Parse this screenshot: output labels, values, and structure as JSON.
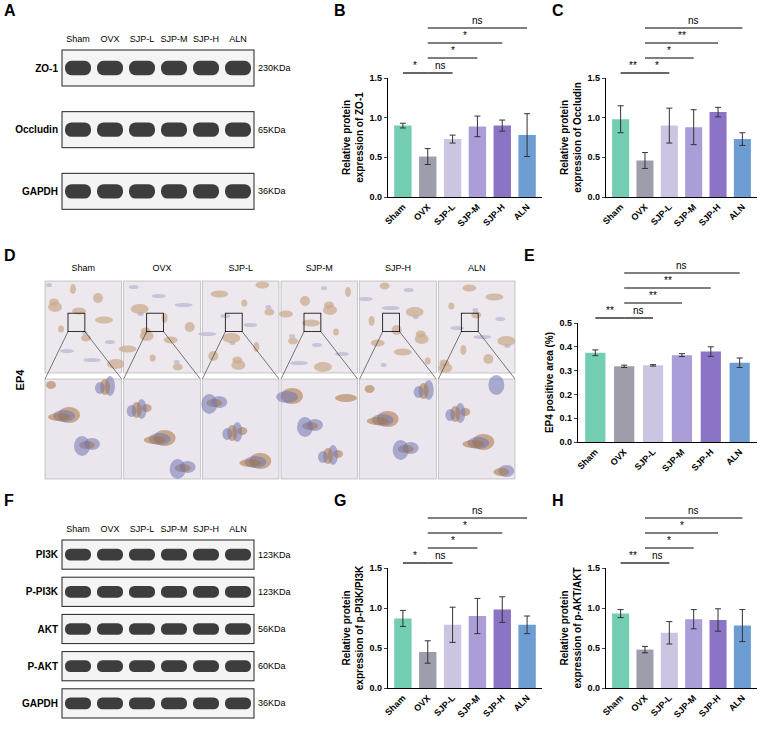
{
  "chart_data": [
    {
      "panel": "B",
      "type": "bar",
      "grid": false,
      "categories": [
        "Sham",
        "OVX",
        "SJP-L",
        "SJP-M",
        "SJP-H",
        "ALN"
      ],
      "values": [
        0.9,
        0.51,
        0.73,
        0.89,
        0.9,
        0.78
      ],
      "errors": [
        0.03,
        0.1,
        0.05,
        0.13,
        0.07,
        0.27
      ],
      "colors": [
        "#72cdb3",
        "#9d9dab",
        "#cbc5e2",
        "#ab9dd8",
        "#8b73c5",
        "#6d9dd3"
      ],
      "y_label": "Relative protein expression of ZO-1",
      "ylim": [
        0,
        1.5
      ],
      "yticks": [
        {
          "value": 0,
          "label": "0.0"
        },
        {
          "value": 0.5,
          "label": "0.5"
        },
        {
          "value": 1,
          "label": "1.0"
        },
        {
          "value": 1.5,
          "label": "1.5"
        }
      ],
      "comparisons": [
        {
          "from": "Sham",
          "to": "OVX",
          "label": "*"
        },
        {
          "from": "OVX",
          "to": "SJP-L",
          "label": "ns"
        },
        {
          "from": "OVX",
          "to": "SJP-M",
          "label": "*"
        },
        {
          "from": "OVX",
          "to": "SJP-H",
          "label": "*"
        },
        {
          "from": "OVX",
          "to": "ALN",
          "label": "ns"
        }
      ]
    },
    {
      "panel": "C",
      "type": "bar",
      "grid": false,
      "categories": [
        "Sham",
        "OVX",
        "SJP-L",
        "SJP-M",
        "SJP-H",
        "ALN"
      ],
      "values": [
        0.98,
        0.46,
        0.9,
        0.88,
        1.07,
        0.73
      ],
      "errors": [
        0.17,
        0.1,
        0.22,
        0.22,
        0.06,
        0.08
      ],
      "colors": [
        "#72cdb3",
        "#9d9dab",
        "#cbc5e2",
        "#ab9dd8",
        "#8b73c5",
        "#6d9dd3"
      ],
      "y_label": "Relative protein expression of Occludin",
      "ylim": [
        0,
        1.5
      ],
      "yticks": [
        {
          "value": 0,
          "label": "0.0"
        },
        {
          "value": 0.5,
          "label": "0.5"
        },
        {
          "value": 1,
          "label": "1.0"
        },
        {
          "value": 1.5,
          "label": "1.5"
        }
      ],
      "comparisons": [
        {
          "from": "Sham",
          "to": "OVX",
          "label": "**"
        },
        {
          "from": "OVX",
          "to": "SJP-L",
          "label": "*"
        },
        {
          "from": "OVX",
          "to": "SJP-M",
          "label": "*"
        },
        {
          "from": "OVX",
          "to": "SJP-H",
          "label": "**"
        },
        {
          "from": "OVX",
          "to": "ALN",
          "label": "ns"
        }
      ]
    },
    {
      "panel": "E",
      "type": "bar",
      "grid": false,
      "categories": [
        "Sham",
        "OVX",
        "SJP-L",
        "SJP-M",
        "SJP-H",
        "ALN"
      ],
      "values": [
        0.375,
        0.318,
        0.322,
        0.365,
        0.38,
        0.333
      ],
      "errors": [
        0.012,
        0.005,
        0.003,
        0.006,
        0.02,
        0.02
      ],
      "colors": [
        "#72cdb3",
        "#9d9dab",
        "#cbc5e2",
        "#ab9dd8",
        "#8b73c5",
        "#6d9dd3"
      ],
      "y_label": "EP4 positive area (%)",
      "ylim": [
        0,
        0.5
      ],
      "yticks": [
        {
          "value": 0,
          "label": "0.0"
        },
        {
          "value": 0.1,
          "label": "0.1"
        },
        {
          "value": 0.2,
          "label": "0.2"
        },
        {
          "value": 0.3,
          "label": "0.3"
        },
        {
          "value": 0.4,
          "label": "0.4"
        },
        {
          "value": 0.5,
          "label": "0.5"
        }
      ],
      "comparisons": [
        {
          "from": "Sham",
          "to": "OVX",
          "label": "**"
        },
        {
          "from": "OVX",
          "to": "SJP-L",
          "label": "ns"
        },
        {
          "from": "OVX",
          "to": "SJP-M",
          "label": "**"
        },
        {
          "from": "OVX",
          "to": "SJP-H",
          "label": "**"
        },
        {
          "from": "OVX",
          "to": "ALN",
          "label": "ns"
        }
      ]
    },
    {
      "panel": "G",
      "type": "bar",
      "grid": false,
      "categories": [
        "Sham",
        "OVX",
        "SJP-L",
        "SJP-M",
        "SJP-H",
        "ALN"
      ],
      "values": [
        0.87,
        0.45,
        0.79,
        0.9,
        0.98,
        0.79
      ],
      "errors": [
        0.1,
        0.14,
        0.22,
        0.22,
        0.16,
        0.11
      ],
      "colors": [
        "#72cdb3",
        "#9d9dab",
        "#cbc5e2",
        "#ab9dd8",
        "#8b73c5",
        "#6d9dd3"
      ],
      "y_label": "Relative protein expression of p-PI3K/PI3K",
      "ylim": [
        0,
        1.5
      ],
      "yticks": [
        {
          "value": 0,
          "label": "0.0"
        },
        {
          "value": 0.5,
          "label": "0.5"
        },
        {
          "value": 1,
          "label": "1.0"
        },
        {
          "value": 1.5,
          "label": "1.5"
        }
      ],
      "comparisons": [
        {
          "from": "Sham",
          "to": "OVX",
          "label": "*"
        },
        {
          "from": "OVX",
          "to": "SJP-L",
          "label": "ns"
        },
        {
          "from": "OVX",
          "to": "SJP-M",
          "label": "*"
        },
        {
          "from": "OVX",
          "to": "SJP-H",
          "label": "*"
        },
        {
          "from": "OVX",
          "to": "ALN",
          "label": "ns"
        }
      ]
    },
    {
      "panel": "H",
      "type": "bar",
      "grid": false,
      "categories": [
        "Sham",
        "OVX",
        "SJP-L",
        "SJP-M",
        "SJP-H",
        "ALN"
      ],
      "values": [
        0.93,
        0.48,
        0.69,
        0.86,
        0.85,
        0.78
      ],
      "errors": [
        0.05,
        0.04,
        0.14,
        0.12,
        0.14,
        0.2
      ],
      "colors": [
        "#72cdb3",
        "#9d9dab",
        "#cbc5e2",
        "#ab9dd8",
        "#8b73c5",
        "#6d9dd3"
      ],
      "y_label": "Relative protein expression of p-AKT/AKT",
      "ylim": [
        0,
        1.5
      ],
      "yticks": [
        {
          "value": 0,
          "label": "0.0"
        },
        {
          "value": 0.5,
          "label": "0.5"
        },
        {
          "value": 1,
          "label": "1.0"
        },
        {
          "value": 1.5,
          "label": "1.5"
        }
      ],
      "comparisons": [
        {
          "from": "Sham",
          "to": "OVX",
          "label": "**"
        },
        {
          "from": "OVX",
          "to": "SJP-L",
          "label": "ns"
        },
        {
          "from": "OVX",
          "to": "SJP-M",
          "label": "*"
        },
        {
          "from": "OVX",
          "to": "SJP-H",
          "label": "*"
        },
        {
          "from": "OVX",
          "to": "ALN",
          "label": "ns"
        }
      ]
    }
  ],
  "blots": [
    {
      "panel": "A",
      "lanes": [
        "Sham",
        "OVX",
        "SJP-L",
        "SJP-M",
        "SJP-H",
        "ALN"
      ],
      "rows": [
        {
          "name": "ZO-1",
          "size": "230KDa"
        },
        {
          "name": "Occludin",
          "size": "65KDa"
        },
        {
          "name": "GAPDH",
          "size": "36KDa"
        }
      ]
    },
    {
      "panel": "F",
      "lanes": [
        "Sham",
        "OVX",
        "SJP-L",
        "SJP-M",
        "SJP-H",
        "ALN"
      ],
      "rows": [
        {
          "name": "PI3K",
          "size": "123KDa"
        },
        {
          "name": "P-PI3K",
          "size": "123KDa"
        },
        {
          "name": "AKT",
          "size": "56KDa"
        },
        {
          "name": "P-AKT",
          "size": "60KDa"
        },
        {
          "name": "GAPDH",
          "size": "36KDa"
        }
      ]
    }
  ],
  "ihc": {
    "panel": "D",
    "marker": "EP4",
    "groups": [
      "Sham",
      "OVX",
      "SJP-L",
      "SJP-M",
      "SJP-H",
      "ALN"
    ]
  }
}
